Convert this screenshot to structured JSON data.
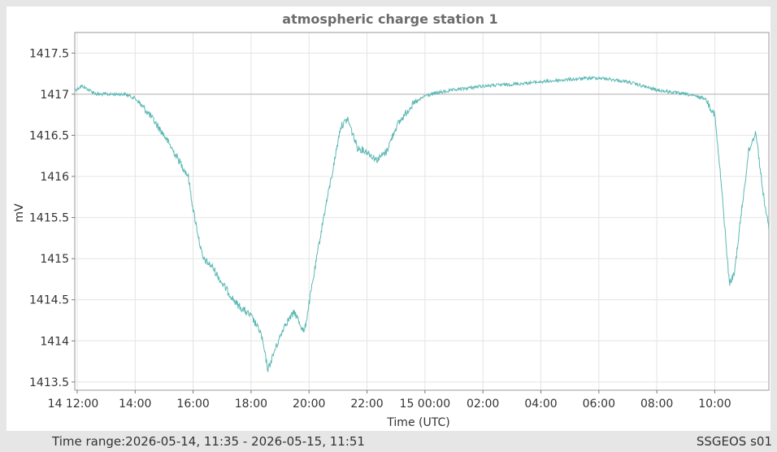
{
  "chart_data": {
    "type": "line",
    "title": "atmospheric charge station 1",
    "xlabel": "Time (UTC)",
    "ylabel": "mV",
    "x_tick_labels": [
      "14 12:00",
      "14:00",
      "16:00",
      "18:00",
      "20:00",
      "22:00",
      "15 00:00",
      "02:00",
      "04:00",
      "06:00",
      "08:00",
      "10:00"
    ],
    "y_tick_labels": [
      "1413.5",
      "1414",
      "1414.5",
      "1415",
      "1415.5",
      "1416",
      "1416.5",
      "1417",
      "1417.5"
    ],
    "ylim": [
      1413.4,
      1417.75
    ],
    "xlim": [
      "2026-05-14 11:55",
      "2026-05-15 11:52"
    ],
    "reference_line": 1417.0,
    "grid": true,
    "series": [
      {
        "color": "#5cb8b4",
        "x": [
          "2026-05-14 11:55",
          "2026-05-14 12:10",
          "2026-05-14 12:40",
          "2026-05-14 13:10",
          "2026-05-14 13:40",
          "2026-05-14 14:00",
          "2026-05-14 14:30",
          "2026-05-14 15:00",
          "2026-05-14 15:30",
          "2026-05-14 15:50",
          "2026-05-14 16:00",
          "2026-05-14 16:20",
          "2026-05-14 16:40",
          "2026-05-14 17:00",
          "2026-05-14 17:30",
          "2026-05-14 18:00",
          "2026-05-14 18:20",
          "2026-05-14 18:35",
          "2026-05-14 18:50",
          "2026-05-14 19:10",
          "2026-05-14 19:30",
          "2026-05-14 19:50",
          "2026-05-14 20:10",
          "2026-05-14 20:30",
          "2026-05-14 20:50",
          "2026-05-14 21:05",
          "2026-05-14 21:20",
          "2026-05-14 21:40",
          "2026-05-14 22:00",
          "2026-05-14 22:20",
          "2026-05-14 22:40",
          "2026-05-14 23:00",
          "2026-05-14 23:30",
          "2026-05-15 00:00",
          "2026-05-15 00:30",
          "2026-05-15 01:00",
          "2026-05-15 02:00",
          "2026-05-15 03:00",
          "2026-05-15 04:00",
          "2026-05-15 05:00",
          "2026-05-15 06:00",
          "2026-05-15 07:00",
          "2026-05-15 08:00",
          "2026-05-15 09:00",
          "2026-05-15 09:40",
          "2026-05-15 10:00",
          "2026-05-15 10:15",
          "2026-05-15 10:30",
          "2026-05-15 10:40",
          "2026-05-15 10:50",
          "2026-05-15 11:10",
          "2026-05-15 11:25",
          "2026-05-15 11:40",
          "2026-05-15 11:52"
        ],
        "y": [
          1417.05,
          1417.1,
          1417.0,
          1417.0,
          1417.0,
          1416.95,
          1416.75,
          1416.5,
          1416.2,
          1416.0,
          1415.6,
          1415.0,
          1414.9,
          1414.7,
          1414.45,
          1414.3,
          1414.1,
          1413.65,
          1413.9,
          1414.2,
          1414.35,
          1414.1,
          1414.8,
          1415.5,
          1416.1,
          1416.6,
          1416.7,
          1416.35,
          1416.3,
          1416.2,
          1416.3,
          1416.6,
          1416.85,
          1416.98,
          1417.02,
          1417.05,
          1417.1,
          1417.12,
          1417.15,
          1417.18,
          1417.2,
          1417.15,
          1417.05,
          1417.0,
          1416.95,
          1416.75,
          1415.8,
          1414.7,
          1414.8,
          1415.3,
          1416.3,
          1416.55,
          1415.8,
          1415.35
        ]
      }
    ]
  },
  "footer": {
    "time_range": "Time range:2026-05-14, 11:35 - 2026-05-15, 11:51",
    "source": "SSGEOS s01"
  }
}
